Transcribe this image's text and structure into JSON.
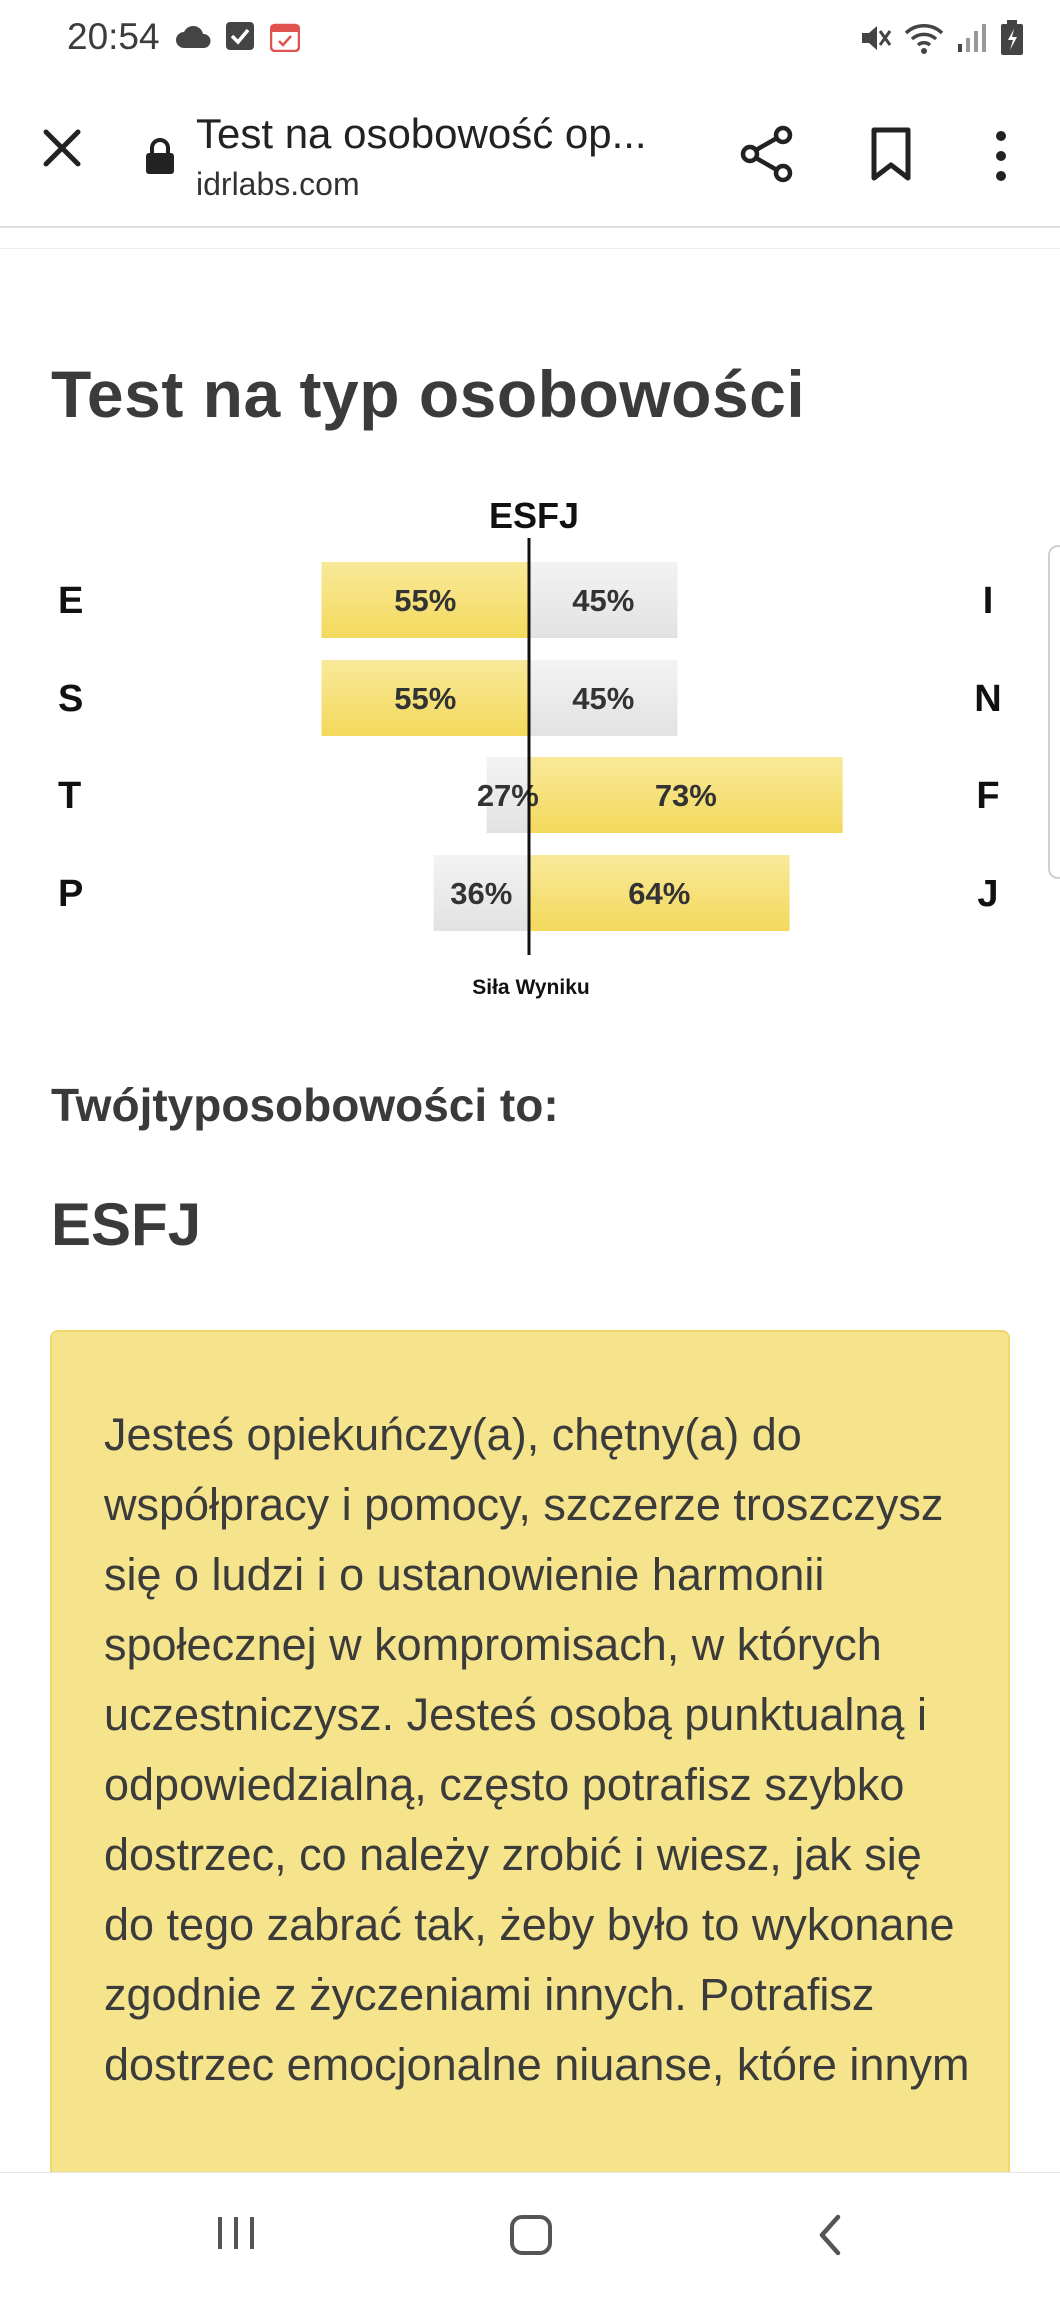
{
  "status_bar": {
    "time": "20:54",
    "icons_left": [
      "cloud-icon",
      "checkbox-icon",
      "calendar-icon"
    ],
    "icons_right": [
      "mute-icon",
      "wifi-icon",
      "signal-icon",
      "battery-icon"
    ]
  },
  "toolbar": {
    "title": "Test na osobowość op...",
    "url": "idrlabs.com",
    "icons": [
      "close-icon",
      "lock-icon",
      "share-icon",
      "bookmark-icon",
      "more-vert-icon"
    ]
  },
  "page": {
    "title": "Test na typ osobowości",
    "type_label": "Twójtyposobowości to:",
    "type_value": "ESFJ",
    "description": "Jesteś opiekuńczy(a), chętny(a) do współpracy i pomocy, szczerze troszczysz się o ludzi i o ustanowienie harmonii społecznej w kompromisach, w których uczestniczysz. Jesteś osobą punktualną i odpowiedzialną, często potrafisz szybko dostrzec, co należy zrobić i wiesz, jak się do tego zabrać tak, żeby było to wykonane zgodnie z życzeniami innych. Potrafisz dostrzec emocjonalne niuanse, które innym"
  },
  "chart_data": {
    "type": "bar",
    "title": "ESFJ",
    "xlabel": "Siła Wyniku",
    "rows": [
      {
        "left_letter": "E",
        "left_value": 55,
        "right_letter": "I",
        "right_value": 45,
        "dominant": "left"
      },
      {
        "left_letter": "S",
        "left_value": 55,
        "right_letter": "N",
        "right_value": 45,
        "dominant": "left"
      },
      {
        "left_letter": "T",
        "left_value": 27,
        "right_letter": "F",
        "right_value": 73,
        "dominant": "right"
      },
      {
        "left_letter": "P",
        "left_value": 36,
        "right_letter": "J",
        "right_value": 64,
        "dominant": "right"
      }
    ],
    "unit": "%",
    "colors": {
      "dominant": "#f7e27a",
      "other": "#ececec",
      "axis": "#111111"
    }
  },
  "nav": {
    "icons": [
      "recent-apps-icon",
      "home-icon",
      "back-icon"
    ]
  }
}
